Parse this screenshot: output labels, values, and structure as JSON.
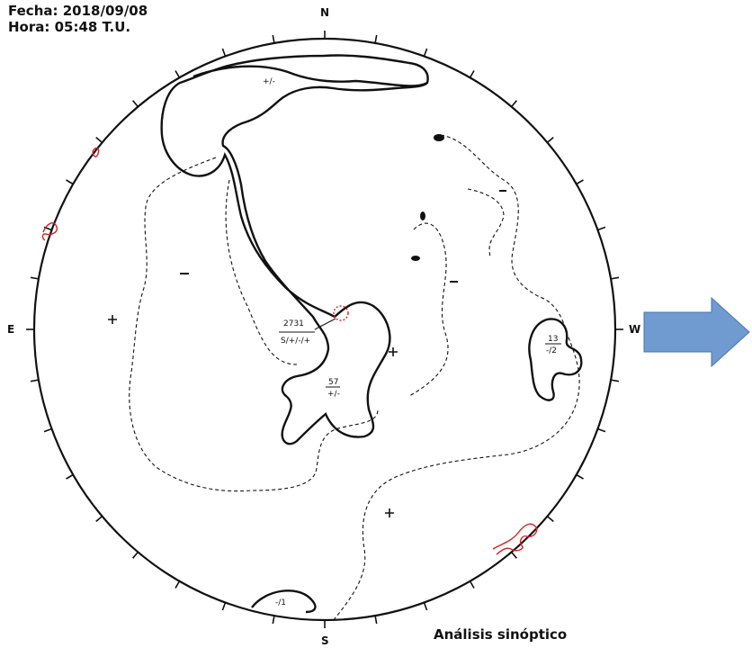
{
  "header": {
    "fecha": "Fecha: 2018/09/08",
    "hora": "Hora: 05:48 T.U."
  },
  "compass": {
    "north": "N",
    "south": "S",
    "east": "E",
    "west": "W"
  },
  "annotations": {
    "center_fraction_top": "2731",
    "center_fraction_bottom": "S/+/-/+",
    "lower_fraction_top": "57",
    "lower_fraction_bottom": "+/-",
    "right_fraction_top": "13",
    "right_fraction_bottom": "-/2",
    "top_label": "+/-",
    "bottom_label": "-/1"
  },
  "caption": "Análisis sinóptico",
  "colors": {
    "ink": "#111111",
    "red_marks": "#d62020",
    "arrow": "#6f9bd1",
    "arrow_edge": "#4a76ad"
  }
}
